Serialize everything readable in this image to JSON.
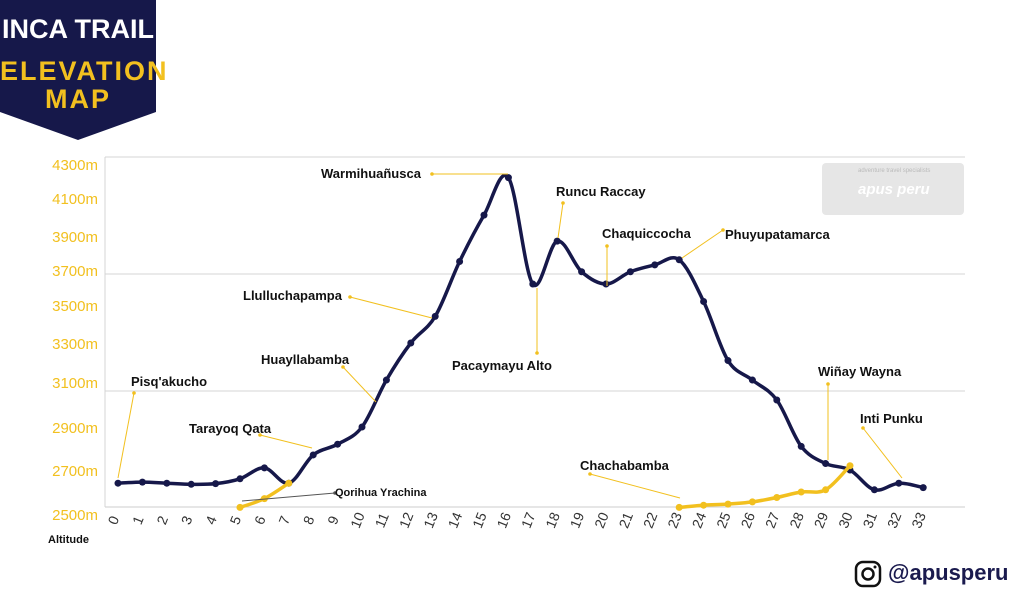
{
  "header": {
    "title_line1": "INCA TRAIL",
    "title_line2": "ELEVATION",
    "title_line3": "MAP"
  },
  "colors": {
    "navy": "#16184a",
    "gold": "#f2c01f"
  },
  "icons": {
    "instagram": "instagram-icon"
  },
  "footer": {
    "handle": "@apusperu"
  },
  "logo": {
    "text": "apus peru",
    "tagline": "adventure travel specialists"
  },
  "chart_data": {
    "type": "line",
    "xlabel": "",
    "ylabel": "Altitude",
    "x_ticks": [
      0,
      1,
      2,
      3,
      4,
      5,
      6,
      7,
      8,
      9,
      10,
      11,
      12,
      13,
      14,
      15,
      16,
      17,
      18,
      19,
      20,
      21,
      22,
      23,
      24,
      25,
      26,
      27,
      28,
      29,
      30,
      31,
      32,
      33
    ],
    "y_ticks": [
      "2500m",
      "2700m",
      "2900m",
      "3100m",
      "3300m",
      "3500m",
      "3700m",
      "3900m",
      "4100m",
      "4300m"
    ],
    "y_tick_values": [
      2500,
      2700,
      2900,
      3100,
      3300,
      3500,
      3700,
      3900,
      4100,
      4300
    ],
    "xlim": [
      0,
      33
    ],
    "ylim": [
      2500,
      4300
    ],
    "grid": "horizontal lines at 3100m, 3700m and 4300m",
    "series": [
      {
        "color": "#16184a",
        "points": [
          [
            0,
            2640
          ],
          [
            1,
            2645
          ],
          [
            2,
            2640
          ],
          [
            3,
            2635
          ],
          [
            4,
            2638
          ],
          [
            5,
            2660
          ],
          [
            6,
            2710
          ],
          [
            7,
            2640
          ],
          [
            8,
            2770
          ],
          [
            9,
            2820
          ],
          [
            10,
            2900
          ],
          [
            11,
            3110
          ],
          [
            12,
            3300
          ],
          [
            13,
            3440
          ],
          [
            14,
            3750
          ],
          [
            15,
            4010
          ],
          [
            16,
            4220
          ],
          [
            17,
            3620
          ],
          [
            18,
            3870
          ],
          [
            19,
            3690
          ],
          [
            20,
            3620
          ],
          [
            21,
            3690
          ],
          [
            22,
            3730
          ],
          [
            23,
            3760
          ],
          [
            24,
            3520
          ],
          [
            25,
            3210
          ],
          [
            26,
            3110
          ],
          [
            27,
            3020
          ],
          [
            28,
            2810
          ],
          [
            29,
            2730
          ],
          [
            30,
            2700
          ],
          [
            31,
            2610
          ],
          [
            32,
            2640
          ],
          [
            33,
            2620
          ]
        ]
      },
      {
        "color": "#f2c01f",
        "points": [
          [
            5,
            2530
          ],
          [
            6,
            2570
          ],
          [
            7,
            2640
          ]
        ]
      },
      {
        "color": "#f2c01f",
        "points": [
          [
            23,
            2530
          ],
          [
            24,
            2540
          ],
          [
            25,
            2545
          ],
          [
            26,
            2555
          ],
          [
            27,
            2575
          ],
          [
            28,
            2600
          ],
          [
            29,
            2610
          ],
          [
            30,
            2720
          ]
        ]
      }
    ],
    "annotations": [
      {
        "label": "Pisq'akucho",
        "x": 0,
        "y": 2640
      },
      {
        "label": "Tarayoq  Qata",
        "x": 8,
        "y": 2770
      },
      {
        "label": "Qorihua Yrachina",
        "x": 5,
        "y": 2530
      },
      {
        "label": "Huayllabamba",
        "x": 11,
        "y": 3010
      },
      {
        "label": "Llulluchapampa",
        "x": 13,
        "y": 3440
      },
      {
        "label": "Warmihuañusca",
        "x": 16,
        "y": 4220
      },
      {
        "label": "Pacaymayu Alto",
        "x": 17,
        "y": 3620
      },
      {
        "label": "Runcu Raccay",
        "x": 18,
        "y": 3870
      },
      {
        "label": "Chaquiccocha",
        "x": 20,
        "y": 3620
      },
      {
        "label": "Phuyupatamarca",
        "x": 23,
        "y": 3760
      },
      {
        "label": "Chachabamba",
        "x": 23,
        "y": 2530
      },
      {
        "label": "Wiñay Wayna",
        "x": 30,
        "y": 2720
      },
      {
        "label": "Inti Punku",
        "x": 32,
        "y": 2640
      }
    ]
  }
}
